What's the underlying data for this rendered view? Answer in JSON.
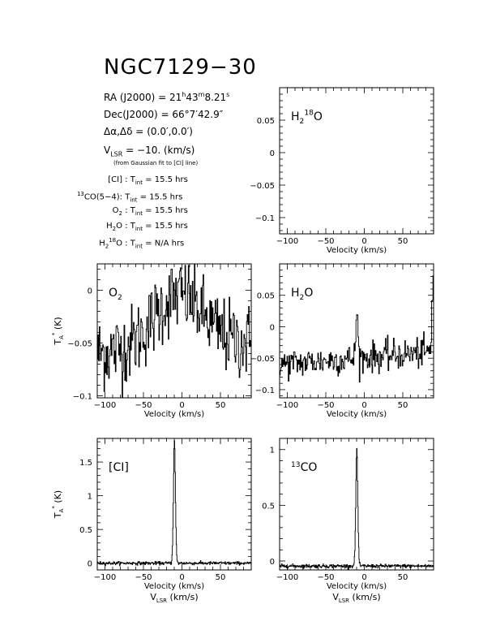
{
  "title": "NGC7129−30",
  "source_info": {
    "ra_label": "RA (J2000) =",
    "ra_h": "21",
    "ra_h_unit": "h",
    "ra_m": "43",
    "ra_m_unit": "m",
    "ra_s": "8.21",
    "ra_s_unit": "s",
    "dec_label": "Dec(J2000) =",
    "dec_value": "66°7′42.9″",
    "offset_label": "Δα,Δδ =",
    "offset_value": "(0.0′,0.0′)",
    "vlsr_label_main": "V",
    "vlsr_label_sub": "LSR",
    "vlsr_value": "= −10. (km/s)",
    "vlsr_note": "(from Gaussian fit to [CI] line)"
  },
  "integration_times": [
    {
      "line": "[CI]",
      "value": "15.5 hrs"
    },
    {
      "line_pre_sup": "13",
      "line": "CO(5−4):",
      "value": "15.5 hrs"
    },
    {
      "line": "O",
      "line_sub": "2",
      "value": "15.5 hrs"
    },
    {
      "line": "H",
      "line_sub": "2",
      "line_tail": "O",
      "value": "15.5 hrs"
    },
    {
      "line": "H",
      "line_sub": "2",
      "line_sup": "18",
      "line_tail": "O",
      "value": "N/A hrs"
    }
  ],
  "tint_label": "T",
  "tint_sub": "int",
  "colors": {
    "axis": "#000000",
    "trace": "#000000",
    "background": "#ffffff"
  },
  "chart_data": [
    {
      "id": "h2o18",
      "type": "line",
      "label": "H",
      "label_sub": "2",
      "label_sup": "18",
      "label_tail": "O",
      "xlabel": "Velocity (km/s)",
      "ylabel": "",
      "xlim": [
        -110,
        90
      ],
      "ylim": [
        -0.125,
        0.1
      ],
      "xticks": [
        -100,
        -50,
        0,
        50
      ],
      "yticks": [
        -0.1,
        -0.05,
        0,
        0.05
      ],
      "ytick_labels": [
        "−0.1",
        "−0.05",
        "0",
        "0.05"
      ],
      "xtick_labels": [
        "−100",
        "−50",
        "0",
        "50"
      ],
      "series": []
    },
    {
      "id": "o2",
      "type": "line",
      "label": "O",
      "label_sub": "2",
      "xlabel": "Velocity (km/s)",
      "ylabel": "T*A (K)",
      "xlim": [
        -110,
        90
      ],
      "ylim": [
        -0.102,
        0.025
      ],
      "xticks": [
        -100,
        -50,
        0,
        50
      ],
      "yticks": [
        -0.1,
        -0.05,
        0
      ],
      "ytick_labels": [
        "−0.1",
        "−0.05",
        "0"
      ],
      "xtick_labels": [
        "−100",
        "−50",
        "0",
        "50"
      ],
      "profile": {
        "baseline_left": -0.06,
        "baseline_mid": -0.01,
        "baseline_right": -0.05,
        "noise": 0.018,
        "npts": 230
      }
    },
    {
      "id": "h2o",
      "type": "line",
      "label": "H",
      "label_sub": "2",
      "label_tail": "O",
      "xlabel": "Velocity (km/s)",
      "ylabel": "",
      "xlim": [
        -110,
        90
      ],
      "ylim": [
        -0.113,
        0.1
      ],
      "xticks": [
        -100,
        -50,
        0,
        50
      ],
      "yticks": [
        -0.1,
        -0.05,
        0,
        0.05
      ],
      "ytick_labels": [
        "−0.1",
        "−0.05",
        "0",
        "0.05"
      ],
      "xtick_labels": [
        "−100",
        "−50",
        "0",
        "50"
      ],
      "profile": {
        "baseline_left": -0.06,
        "baseline_right": -0.04,
        "noise": 0.012,
        "peak_v": -10,
        "peak_amp": 0.07,
        "edge_v": 86,
        "edge_amp": 0.11,
        "npts": 230
      }
    },
    {
      "id": "ci",
      "type": "line",
      "label": "[CI]",
      "xlabel": "Velocity (km/s)",
      "xlabel2": "V_LSR (km/s)",
      "ylabel": "T*A (K)",
      "xlim": [
        -110,
        90
      ],
      "ylim": [
        -0.1,
        1.85
      ],
      "xticks": [
        -100,
        -50,
        0,
        50
      ],
      "yticks": [
        0,
        0.5,
        1,
        1.5
      ],
      "ytick_labels": [
        "0",
        "0.5",
        "1",
        "1.5"
      ],
      "xtick_labels": [
        "−100",
        "−50",
        "0",
        "50"
      ],
      "profile": {
        "baseline": 0.0,
        "noise": 0.012,
        "peak_v": -10,
        "peak_amp": 1.82,
        "width": 1.8,
        "npts": 400
      }
    },
    {
      "id": "co13",
      "type": "line",
      "label_pre_sup": "13",
      "label": "CO",
      "xlabel": "Velocity (km/s)",
      "xlabel2": "V_LSR (km/s)",
      "ylabel": "",
      "xlim": [
        -110,
        90
      ],
      "ylim": [
        -0.08,
        1.1
      ],
      "xticks": [
        -100,
        -50,
        0,
        50
      ],
      "yticks": [
        0,
        0.5,
        1
      ],
      "ytick_labels": [
        "0",
        "0.5",
        "1"
      ],
      "xtick_labels": [
        "−100",
        "−50",
        "0",
        "50"
      ],
      "profile": {
        "baseline": -0.045,
        "noise": 0.008,
        "peak_v": -10,
        "peak_amp": 1.05,
        "width": 1.8,
        "npts": 400
      }
    }
  ]
}
